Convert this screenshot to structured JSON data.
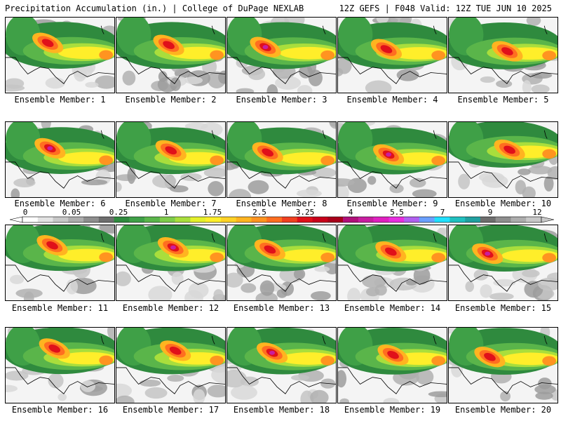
{
  "header": {
    "left_title": "Precipitation Accumulation (in.) | College of DuPage NEXLAB",
    "right_title": "12Z GEFS | F048 Valid: 12Z TUE JUN 10 2025"
  },
  "colorbar": {
    "labels": [
      "0",
      "0.05",
      "0.25",
      "1",
      "1.75",
      "2.5",
      "3.25",
      "4",
      "5.5",
      "7",
      "9",
      "12"
    ],
    "colors": [
      "#ffffff",
      "#e3e3e3",
      "#c8c8c8",
      "#adadad",
      "#8e8e8e",
      "#6e6e6e",
      "#2f8a3e",
      "#3fa047",
      "#5ab54a",
      "#7fcc4a",
      "#a9de3c",
      "#e4f02a",
      "#ffee2a",
      "#ffd226",
      "#ffb420",
      "#ff9420",
      "#ff6e20",
      "#f04020",
      "#e0101a",
      "#c8001a",
      "#a8001a",
      "#b0107a",
      "#c81ea0",
      "#e020c0",
      "#e82ee0",
      "#b060f0",
      "#6aa0ff",
      "#20e0ff",
      "#20c0c0",
      "#20a0a0",
      "#6e6e6e",
      "#8e8e8e",
      "#adadad",
      "#c8c8c8"
    ]
  },
  "members": [
    {
      "label": "Ensemble Member: 1"
    },
    {
      "label": "Ensemble Member: 2"
    },
    {
      "label": "Ensemble Member: 3"
    },
    {
      "label": "Ensemble Member: 4"
    },
    {
      "label": "Ensemble Member: 5"
    },
    {
      "label": "Ensemble Member: 6"
    },
    {
      "label": "Ensemble Member: 7"
    },
    {
      "label": "Ensemble Member: 8"
    },
    {
      "label": "Ensemble Member: 9"
    },
    {
      "label": "Ensemble Member: 10"
    },
    {
      "label": "Ensemble Member: 11"
    },
    {
      "label": "Ensemble Member: 12"
    },
    {
      "label": "Ensemble Member: 13"
    },
    {
      "label": "Ensemble Member: 14"
    },
    {
      "label": "Ensemble Member: 15"
    },
    {
      "label": "Ensemble Member: 16"
    },
    {
      "label": "Ensemble Member: 17"
    },
    {
      "label": "Ensemble Member: 18"
    },
    {
      "label": "Ensemble Member: 19"
    },
    {
      "label": "Ensemble Member: 20"
    }
  ]
}
